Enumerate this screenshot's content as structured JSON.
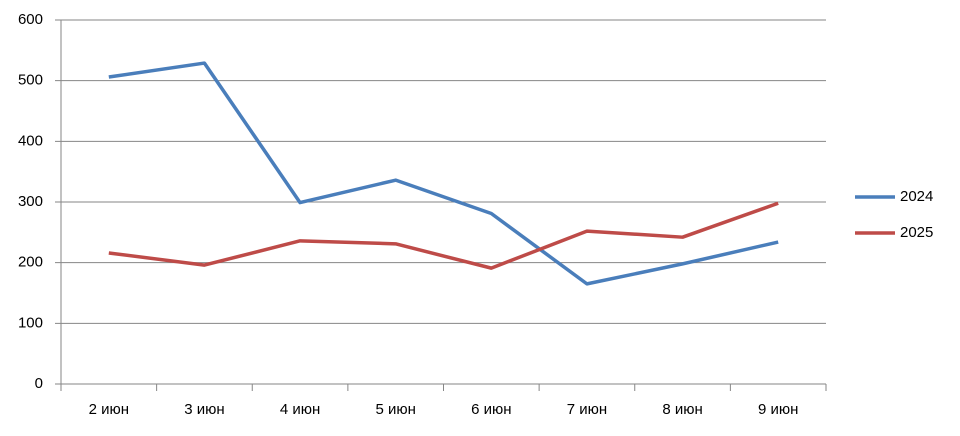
{
  "chart_data": {
    "type": "line",
    "categories": [
      "2 июн",
      "3 июн",
      "4 июн",
      "5 июн",
      "6 июн",
      "7 июн",
      "8 июн",
      "9 июн"
    ],
    "series": [
      {
        "name": "2024",
        "color": "#4a7ebb",
        "values": [
          506,
          529,
          299,
          336,
          281,
          165,
          198,
          234
        ]
      },
      {
        "name": "2025",
        "color": "#be4b48",
        "values": [
          216,
          196,
          236,
          231,
          191,
          252,
          242,
          298
        ]
      }
    ],
    "ylim": [
      0,
      600
    ],
    "yticks": [
      0,
      100,
      200,
      300,
      400,
      500,
      600
    ],
    "grid": true,
    "legend": "right"
  }
}
